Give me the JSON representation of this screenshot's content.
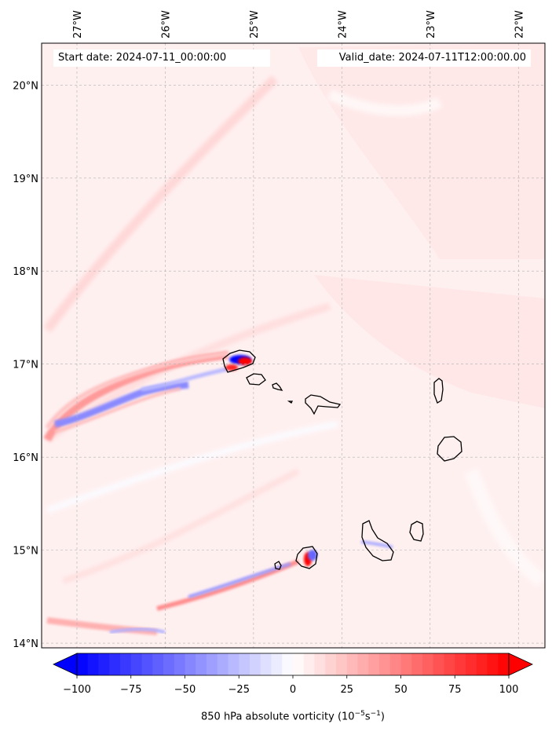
{
  "map": {
    "start_date": "Start date: 2024-07-11_00:00:00",
    "valid_date": "Valid_date: 2024-07-11T12:00:00.00",
    "extent": {
      "lon_min": -27.4,
      "lon_max": -21.7,
      "lat_min": 13.95,
      "lat_max": 20.45
    },
    "lon_ticks": [
      -27,
      -26,
      -25,
      -24,
      -23,
      -22
    ],
    "lon_tick_labels": [
      "27°W",
      "26°W",
      "25°W",
      "24°W",
      "23°W",
      "22°W"
    ],
    "lat_ticks": [
      14,
      15,
      16,
      17,
      18,
      19,
      20
    ],
    "lat_tick_labels": [
      "14°N",
      "15°N",
      "16°N",
      "17°N",
      "18°N",
      "19°N",
      "20°N"
    ],
    "gridlines": true,
    "islands": [
      {
        "name": "Santo Antão",
        "lon": -25.18,
        "lat": 17.05
      },
      {
        "name": "São Vicente",
        "lon": -24.98,
        "lat": 16.83
      },
      {
        "name": "Santa Luzia",
        "lon": -24.75,
        "lat": 16.76
      },
      {
        "name": "São Nicolau",
        "lon": -24.26,
        "lat": 16.6
      },
      {
        "name": "Sal",
        "lon": -22.93,
        "lat": 16.72
      },
      {
        "name": "Boa Vista",
        "lon": -22.8,
        "lat": 16.08
      },
      {
        "name": "Maio",
        "lon": -23.17,
        "lat": 15.2
      },
      {
        "name": "Santiago",
        "lon": -23.64,
        "lat": 15.08
      },
      {
        "name": "Fogo",
        "lon": -24.38,
        "lat": 14.92
      },
      {
        "name": "Brava",
        "lon": -24.71,
        "lat": 14.85
      }
    ]
  },
  "colorbar": {
    "title_prefix": "850 hPa absolute vorticity (10",
    "title_exp1": "−5",
    "title_mid": "s",
    "title_exp2": "−1",
    "title_suffix": ")",
    "min": -100,
    "max": 100,
    "extend": "both",
    "colormap": "bwr",
    "low_color": "#0000ff",
    "mid_color": "#ffffff",
    "high_color": "#ff0000",
    "ticks": [
      -100,
      -75,
      -50,
      -25,
      0,
      25,
      50,
      75,
      100
    ],
    "tick_labels": [
      "−100",
      "−75",
      "−50",
      "−25",
      "0",
      "25",
      "50",
      "75",
      "100"
    ]
  }
}
